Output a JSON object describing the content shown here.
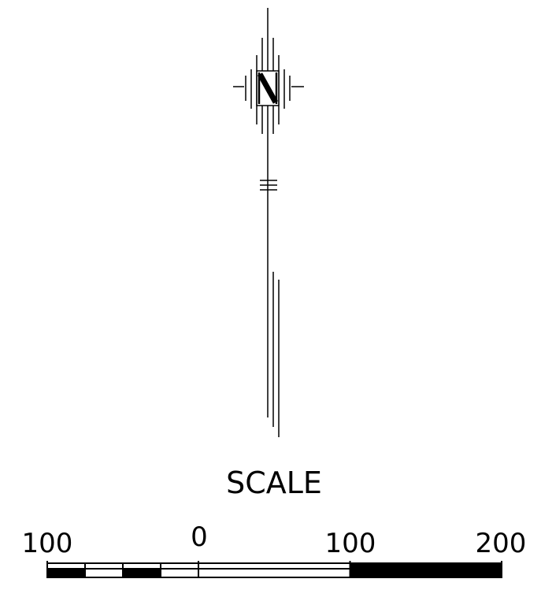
{
  "north_arrow": {
    "letter": "N"
  },
  "scale": {
    "title": "SCALE",
    "tick_labels": [
      "100",
      "0",
      "100",
      "200"
    ],
    "left_segment_pattern": [
      "black",
      "white",
      "black",
      "white"
    ],
    "right_segment_pattern": [
      "white",
      "black"
    ]
  },
  "colors": {
    "ink": "#000000",
    "paper": "#ffffff"
  }
}
